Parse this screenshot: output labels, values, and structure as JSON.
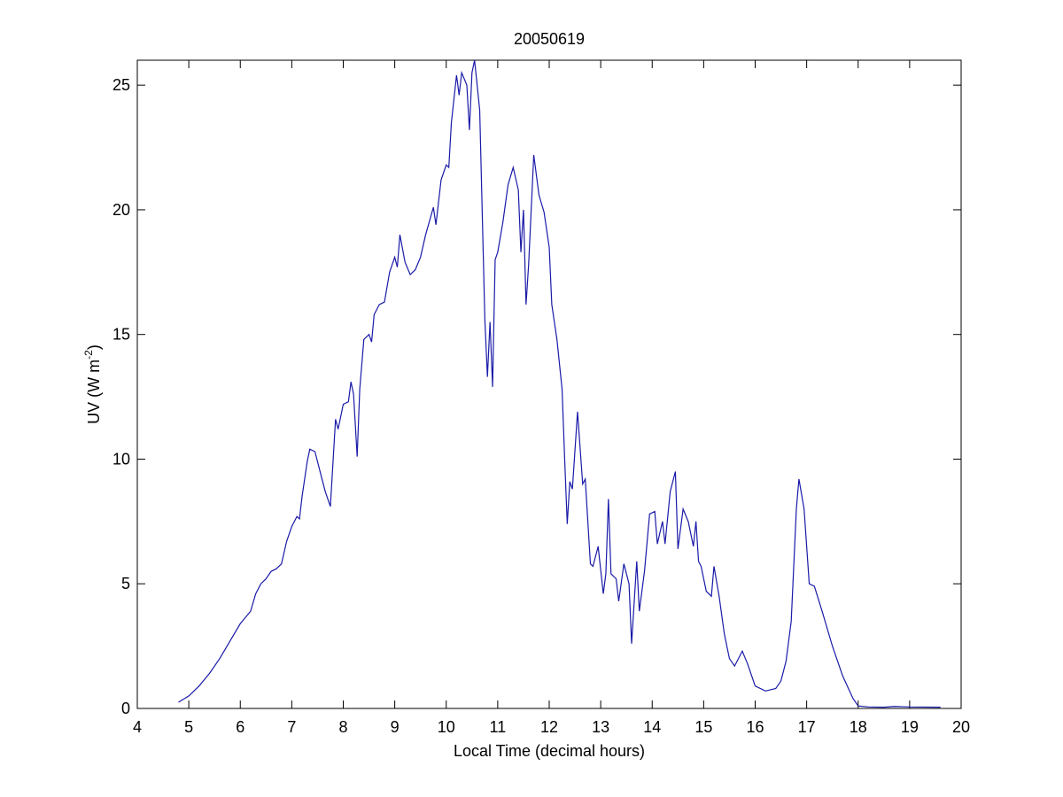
{
  "chart_data": {
    "type": "line",
    "title": "20050619",
    "xlabel": "Local Time (decimal hours)",
    "ylabel_parts": [
      "UV (W m",
      "-2",
      ")"
    ],
    "xlim": [
      4,
      20
    ],
    "ylim": [
      0,
      26
    ],
    "xticks": [
      4,
      5,
      6,
      7,
      8,
      9,
      10,
      11,
      12,
      13,
      14,
      15,
      16,
      17,
      18,
      19,
      20
    ],
    "yticks": [
      0,
      5,
      10,
      15,
      20,
      25
    ],
    "grid": false,
    "x": [
      4.8,
      5.0,
      5.2,
      5.4,
      5.6,
      5.8,
      6.0,
      6.2,
      6.3,
      6.4,
      6.5,
      6.6,
      6.7,
      6.8,
      6.9,
      7.0,
      7.1,
      7.15,
      7.2,
      7.3,
      7.35,
      7.45,
      7.55,
      7.65,
      7.75,
      7.85,
      7.9,
      8.0,
      8.1,
      8.15,
      8.2,
      8.27,
      8.32,
      8.4,
      8.5,
      8.55,
      8.6,
      8.7,
      8.8,
      8.9,
      9.0,
      9.05,
      9.1,
      9.2,
      9.3,
      9.4,
      9.5,
      9.6,
      9.75,
      9.8,
      9.9,
      10.0,
      10.05,
      10.1,
      10.2,
      10.25,
      10.3,
      10.4,
      10.45,
      10.5,
      10.55,
      10.65,
      10.75,
      10.8,
      10.85,
      10.9,
      10.95,
      11.0,
      11.1,
      11.2,
      11.3,
      11.4,
      11.45,
      11.5,
      11.55,
      11.6,
      11.7,
      11.8,
      11.9,
      12.0,
      12.05,
      12.15,
      12.25,
      12.3,
      12.35,
      12.4,
      12.45,
      12.55,
      12.65,
      12.7,
      12.8,
      12.85,
      12.95,
      13.05,
      13.1,
      13.15,
      13.2,
      13.3,
      13.35,
      13.45,
      13.55,
      13.6,
      13.7,
      13.75,
      13.85,
      13.95,
      14.05,
      14.1,
      14.2,
      14.25,
      14.35,
      14.45,
      14.5,
      14.6,
      14.7,
      14.8,
      14.85,
      14.9,
      14.95,
      15.05,
      15.15,
      15.2,
      15.3,
      15.4,
      15.5,
      15.6,
      15.75,
      15.85,
      16.0,
      16.2,
      16.4,
      16.5,
      16.6,
      16.7,
      16.8,
      16.85,
      16.95,
      17.05,
      17.15,
      17.3,
      17.5,
      17.7,
      17.9,
      18.0,
      18.2,
      18.5,
      18.7,
      19.0,
      19.6
    ],
    "series": [
      {
        "color": "#1a1aa8",
        "values": [
          0.25,
          0.5,
          0.9,
          1.4,
          2.0,
          2.7,
          3.4,
          3.9,
          4.6,
          5.0,
          5.2,
          5.5,
          5.6,
          5.8,
          6.7,
          7.3,
          7.7,
          7.6,
          8.5,
          9.9,
          10.4,
          10.3,
          9.5,
          8.7,
          8.1,
          11.6,
          11.2,
          12.2,
          12.3,
          13.1,
          12.6,
          10.1,
          12.8,
          14.8,
          15.0,
          14.7,
          15.8,
          16.2,
          16.3,
          17.5,
          18.1,
          17.7,
          19.0,
          17.9,
          17.4,
          17.6,
          18.1,
          19.0,
          20.1,
          19.4,
          21.2,
          21.8,
          21.7,
          23.5,
          25.4,
          24.6,
          25.5,
          25.0,
          23.2,
          25.5,
          26.0,
          24.0,
          15.6,
          13.3,
          15.5,
          12.9,
          18.0,
          18.3,
          19.5,
          21.0,
          21.7,
          20.8,
          18.3,
          20.0,
          16.2,
          17.8,
          22.2,
          20.6,
          19.9,
          18.5,
          16.2,
          14.8,
          12.8,
          10.0,
          7.4,
          9.1,
          8.8,
          11.9,
          9.0,
          9.2,
          5.8,
          5.7,
          6.5,
          4.6,
          5.4,
          8.4,
          5.4,
          5.2,
          4.3,
          5.8,
          5.0,
          2.6,
          5.9,
          3.9,
          5.5,
          7.8,
          7.9,
          6.6,
          7.5,
          6.6,
          8.7,
          9.5,
          6.4,
          8.0,
          7.5,
          6.5,
          7.5,
          5.9,
          5.7,
          4.7,
          4.5,
          5.7,
          4.5,
          3.0,
          2.0,
          1.7,
          2.3,
          1.8,
          0.9,
          0.7,
          0.8,
          1.1,
          1.9,
          3.5,
          8.0,
          9.2,
          8.0,
          5.0,
          4.9,
          3.9,
          2.5,
          1.3,
          0.4,
          0.1,
          0.06,
          0.05,
          0.08,
          0.06,
          0.05
        ]
      }
    ]
  }
}
